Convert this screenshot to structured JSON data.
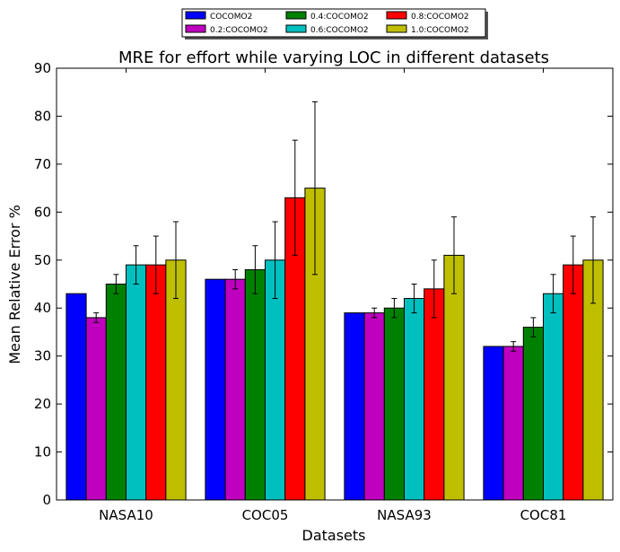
{
  "chart_data": {
    "type": "bar",
    "title": "MRE for effort while varying LOC in different datasets",
    "xlabel": "Datasets",
    "ylabel": "Mean Relative Error %",
    "ylim": [
      0,
      90
    ],
    "yticks": [
      0,
      10,
      20,
      30,
      40,
      50,
      60,
      70,
      80,
      90
    ],
    "grid": false,
    "legend_position": "top-center",
    "categories": [
      "NASA10",
      "COC05",
      "NASA93",
      "COC81"
    ],
    "series": [
      {
        "name": "COCOMO2",
        "color": "#0000ff",
        "values": [
          43,
          46,
          39,
          32
        ],
        "errors": [
          null,
          null,
          null,
          null
        ]
      },
      {
        "name": "0.2:COCOMO2",
        "color": "#bf00bf",
        "values": [
          38,
          46,
          39,
          32
        ],
        "errors": [
          1,
          2,
          1,
          1
        ]
      },
      {
        "name": "0.4:COCOMO2",
        "color": "#008000",
        "values": [
          45,
          48,
          40,
          36
        ],
        "errors": [
          2,
          5,
          2,
          2
        ]
      },
      {
        "name": "0.6:COCOMO2",
        "color": "#00bfbf",
        "values": [
          49,
          50,
          42,
          43
        ],
        "errors": [
          4,
          8,
          3,
          4
        ]
      },
      {
        "name": "0.8:COCOMO2",
        "color": "#ff0000",
        "values": [
          49,
          63,
          44,
          49
        ],
        "errors": [
          6,
          12,
          6,
          6
        ]
      },
      {
        "name": "1.0:COCOMO2",
        "color": "#bfbf00",
        "values": [
          50,
          65,
          51,
          50
        ],
        "errors": [
          8,
          18,
          8,
          9
        ]
      }
    ]
  }
}
